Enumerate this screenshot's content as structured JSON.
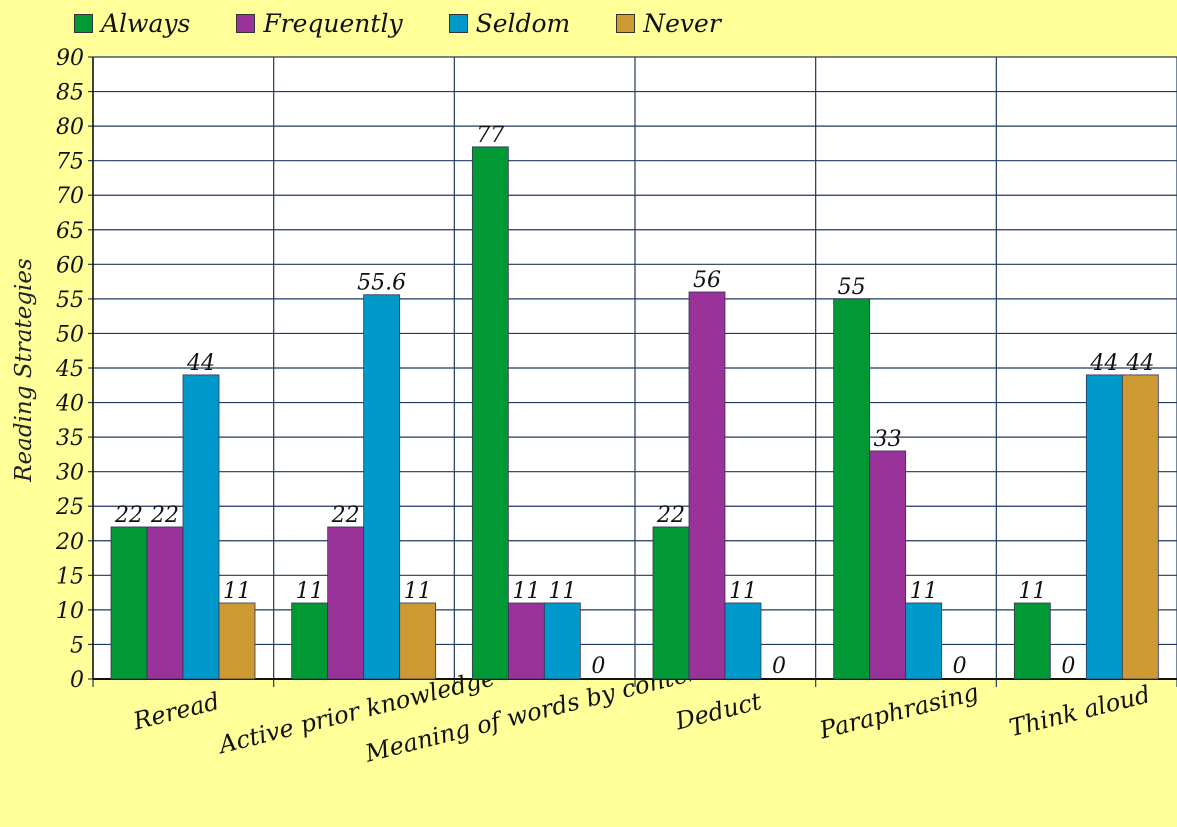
{
  "chart_data": {
    "type": "bar",
    "title": "",
    "xlabel": "",
    "ylabel": "Reading Strategies",
    "ylim": [
      0,
      90
    ],
    "ytick_step": 5,
    "grid": true,
    "legend_position": "top",
    "categories": [
      "Reread",
      "Active prior knowledge",
      "Meaning of words by context",
      "Deduct",
      "Paraphrasing",
      "Think aloud"
    ],
    "series": [
      {
        "name": "Always",
        "color": "#009933",
        "values": [
          22,
          11,
          77,
          22,
          55,
          11
        ]
      },
      {
        "name": "Frequently",
        "color": "#993399",
        "values": [
          22,
          22,
          11,
          56,
          33,
          0
        ]
      },
      {
        "name": "Seldom",
        "color": "#0099cc",
        "values": [
          44,
          55.6,
          11,
          11,
          11,
          44
        ]
      },
      {
        "name": "Never",
        "color": "#cc9933",
        "values": [
          11,
          11,
          0,
          0,
          0,
          44
        ]
      }
    ]
  }
}
